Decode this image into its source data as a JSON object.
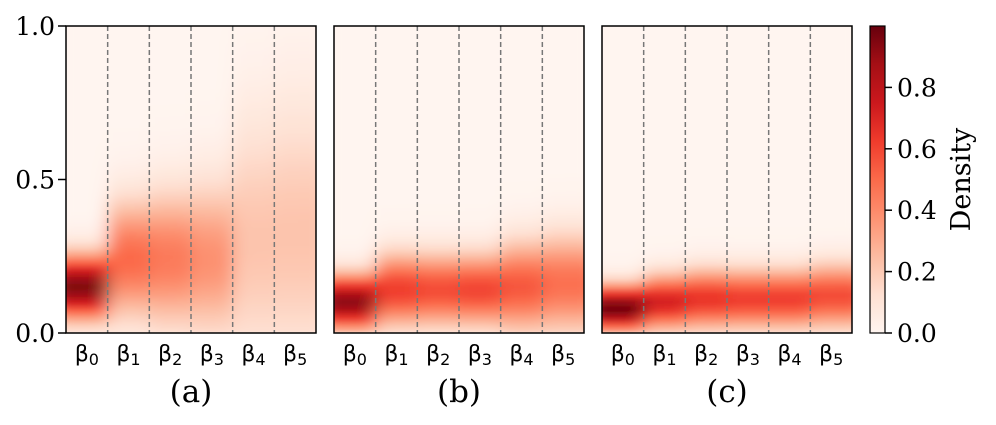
{
  "chart_data": {
    "type": "heatmap",
    "ylim": [
      0,
      1
    ],
    "yticks": [
      "0.0",
      "0.5",
      "1.0"
    ],
    "categories": [
      "β0",
      "β1",
      "β2",
      "β3",
      "β4",
      "β5"
    ],
    "category_labels": [
      {
        "base": "β",
        "sub": "0"
      },
      {
        "base": "β",
        "sub": "1"
      },
      {
        "base": "β",
        "sub": "2"
      },
      {
        "base": "β",
        "sub": "3"
      },
      {
        "base": "β",
        "sub": "4"
      },
      {
        "base": "β",
        "sub": "5"
      }
    ],
    "panels": [
      {
        "label": "(a)",
        "columns": [
          {
            "center": 0.15,
            "spread": 0.07,
            "peak": 0.95
          },
          {
            "center": 0.24,
            "spread": 0.13,
            "peak": 0.5
          },
          {
            "center": 0.24,
            "spread": 0.15,
            "peak": 0.45
          },
          {
            "center": 0.24,
            "spread": 0.17,
            "peak": 0.38
          },
          {
            "center": 0.3,
            "spread": 0.28,
            "peak": 0.22
          },
          {
            "center": 0.32,
            "spread": 0.3,
            "peak": 0.22
          }
        ]
      },
      {
        "label": "(b)",
        "columns": [
          {
            "center": 0.1,
            "spread": 0.06,
            "peak": 0.92
          },
          {
            "center": 0.14,
            "spread": 0.08,
            "peak": 0.62
          },
          {
            "center": 0.14,
            "spread": 0.08,
            "peak": 0.58
          },
          {
            "center": 0.14,
            "spread": 0.08,
            "peak": 0.6
          },
          {
            "center": 0.15,
            "spread": 0.1,
            "peak": 0.55
          },
          {
            "center": 0.16,
            "spread": 0.11,
            "peak": 0.48
          }
        ]
      },
      {
        "label": "(c)",
        "columns": [
          {
            "center": 0.08,
            "spread": 0.05,
            "peak": 0.98
          },
          {
            "center": 0.1,
            "spread": 0.06,
            "peak": 0.72
          },
          {
            "center": 0.11,
            "spread": 0.065,
            "peak": 0.65
          },
          {
            "center": 0.11,
            "spread": 0.065,
            "peak": 0.62
          },
          {
            "center": 0.11,
            "spread": 0.065,
            "peak": 0.62
          },
          {
            "center": 0.12,
            "spread": 0.07,
            "peak": 0.58
          }
        ]
      }
    ],
    "colorbar": {
      "label": "Density",
      "range": [
        0,
        1
      ],
      "ticks": [
        "0.0",
        "0.2",
        "0.4",
        "0.6",
        "0.8"
      ],
      "colormap": [
        "#fff5f0",
        "#fee0d2",
        "#fcbba1",
        "#fc9272",
        "#fb6a4a",
        "#ef3b2c",
        "#cb181d",
        "#a50f15",
        "#67000d"
      ]
    },
    "separator_color": "#777777",
    "separator_style": "dashed",
    "grid": false
  }
}
